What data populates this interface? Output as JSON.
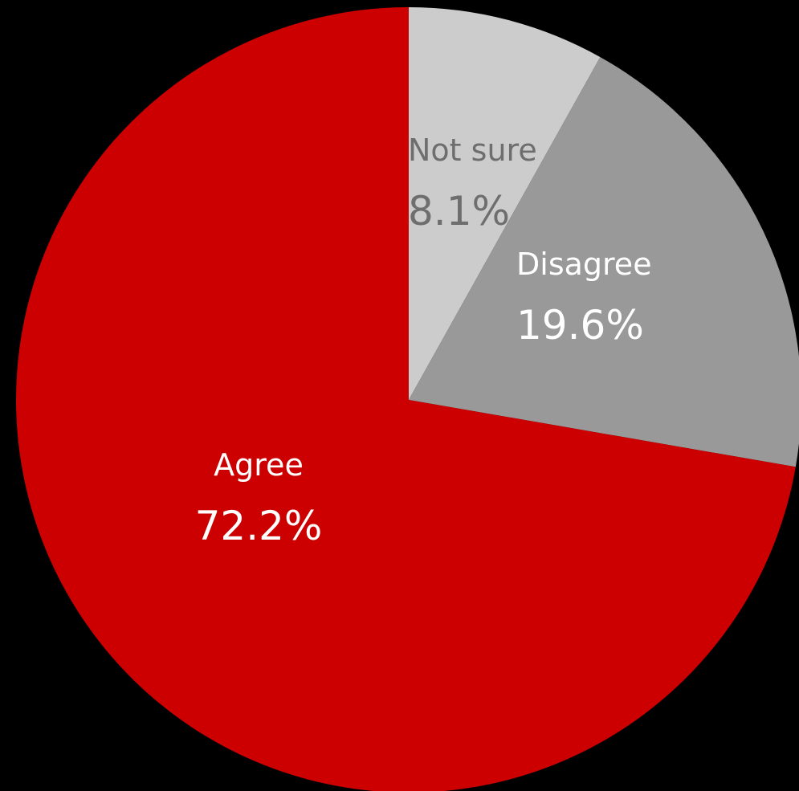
{
  "chart_data": {
    "type": "pie",
    "slices": [
      {
        "label": "Not sure",
        "value": 8.1,
        "display": "8.1%",
        "color": "#cccccc",
        "label_color": "#6e6e6e"
      },
      {
        "label": "Disagree",
        "value": 19.6,
        "display": "19.6%",
        "color": "#999999",
        "label_color": "#ffffff"
      },
      {
        "label": "Agree",
        "value": 72.2,
        "display": "72.2%",
        "color": "#cc0000",
        "label_color": "#ffffff"
      }
    ],
    "start_angle": "12 o'clock",
    "direction": "clockwise",
    "background": "#000000"
  }
}
